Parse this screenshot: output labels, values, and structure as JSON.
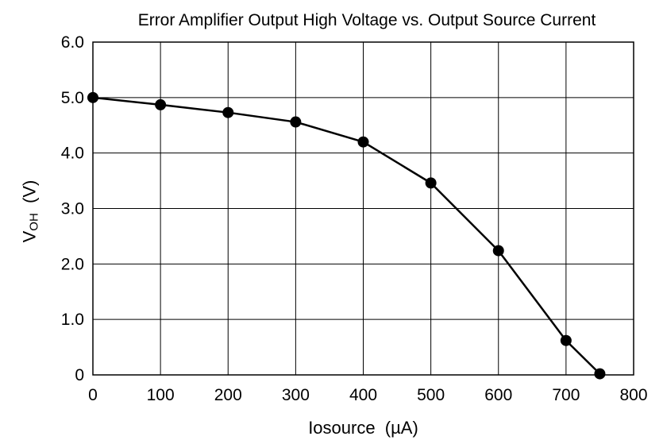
{
  "chart_data": {
    "type": "line",
    "title": "Error Amplifier Output High Voltage vs. Output Source Current",
    "xlabel": "Iosource  (µA)",
    "ylabel": {
      "main": "V",
      "sub": "OH",
      "unit": "  (V)"
    },
    "xlim": [
      0,
      800
    ],
    "ylim": [
      0,
      6
    ],
    "x_ticks": [
      "0",
      "100",
      "200",
      "300",
      "400",
      "500",
      "600",
      "700",
      "800"
    ],
    "y_ticks": [
      "0",
      "1.0",
      "2.0",
      "3.0",
      "4.0",
      "5.0",
      "6.0"
    ],
    "grid": true,
    "series": [
      {
        "x": [
          0,
          100,
          200,
          300,
          400,
          500,
          600,
          700,
          750
        ],
        "y": [
          5.0,
          4.87,
          4.73,
          4.56,
          4.2,
          3.46,
          2.24,
          0.62,
          0.02
        ]
      }
    ],
    "colors": {
      "line": "#000000",
      "marker": "#000000",
      "grid": "#000000"
    }
  }
}
